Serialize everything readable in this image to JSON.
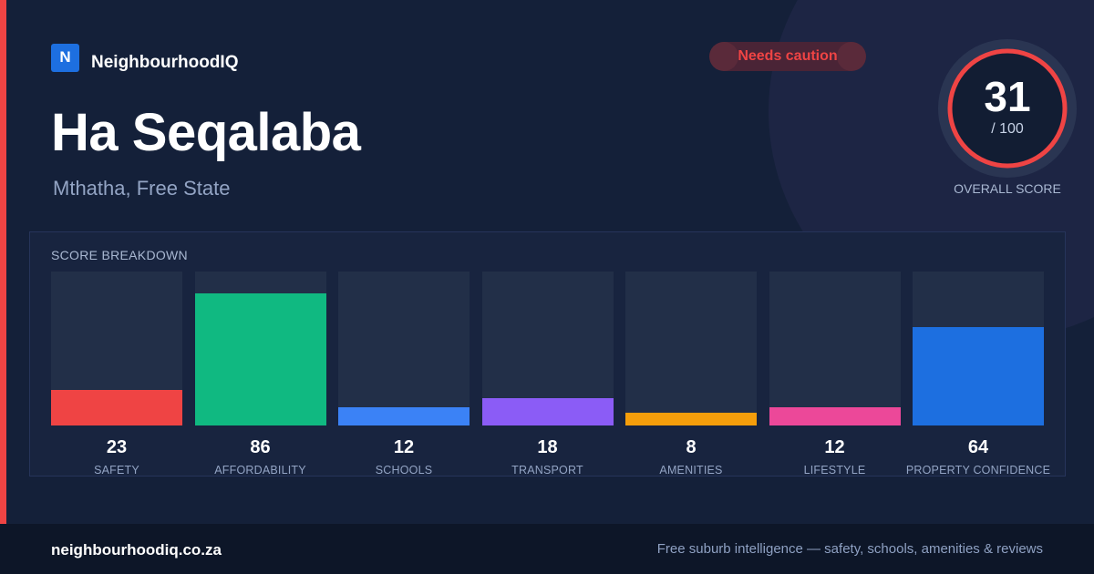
{
  "brand": {
    "logo_letter": "N",
    "name": "NeighbourhoodIQ"
  },
  "badge": {
    "label": "Needs caution"
  },
  "area": {
    "title": "Ha Seqalaba",
    "subtitle": "Mthatha, Free State"
  },
  "overall": {
    "score": "31",
    "max": "/ 100",
    "caption": "OVERALL SCORE",
    "score_value": 31,
    "ring_color": "#ef4444"
  },
  "breakdown": {
    "title": "SCORE BREAKDOWN",
    "items": [
      {
        "label": "SAFETY",
        "value": 23,
        "value_text": "23",
        "color": "#ef4444"
      },
      {
        "label": "AFFORDABILITY",
        "value": 86,
        "value_text": "86",
        "color": "#10b981"
      },
      {
        "label": "SCHOOLS",
        "value": 12,
        "value_text": "12",
        "color": "#3b82f6"
      },
      {
        "label": "TRANSPORT",
        "value": 18,
        "value_text": "18",
        "color": "#8b5cf6"
      },
      {
        "label": "AMENITIES",
        "value": 8,
        "value_text": "8",
        "color": "#f59e0b"
      },
      {
        "label": "LIFESTYLE",
        "value": 12,
        "value_text": "12",
        "color": "#ec4899"
      },
      {
        "label": "PROPERTY CONFIDENCE",
        "value": 64,
        "value_text": "64",
        "color": "#1d6fe0"
      }
    ]
  },
  "footer": {
    "url": "neighbourhoodiq.co.za",
    "tagline": "Free suburb intelligence — safety, schools, amenities & reviews"
  },
  "colors": {
    "accent": "#ef4444",
    "background": "#142039",
    "brand": "#1d6fe0"
  }
}
